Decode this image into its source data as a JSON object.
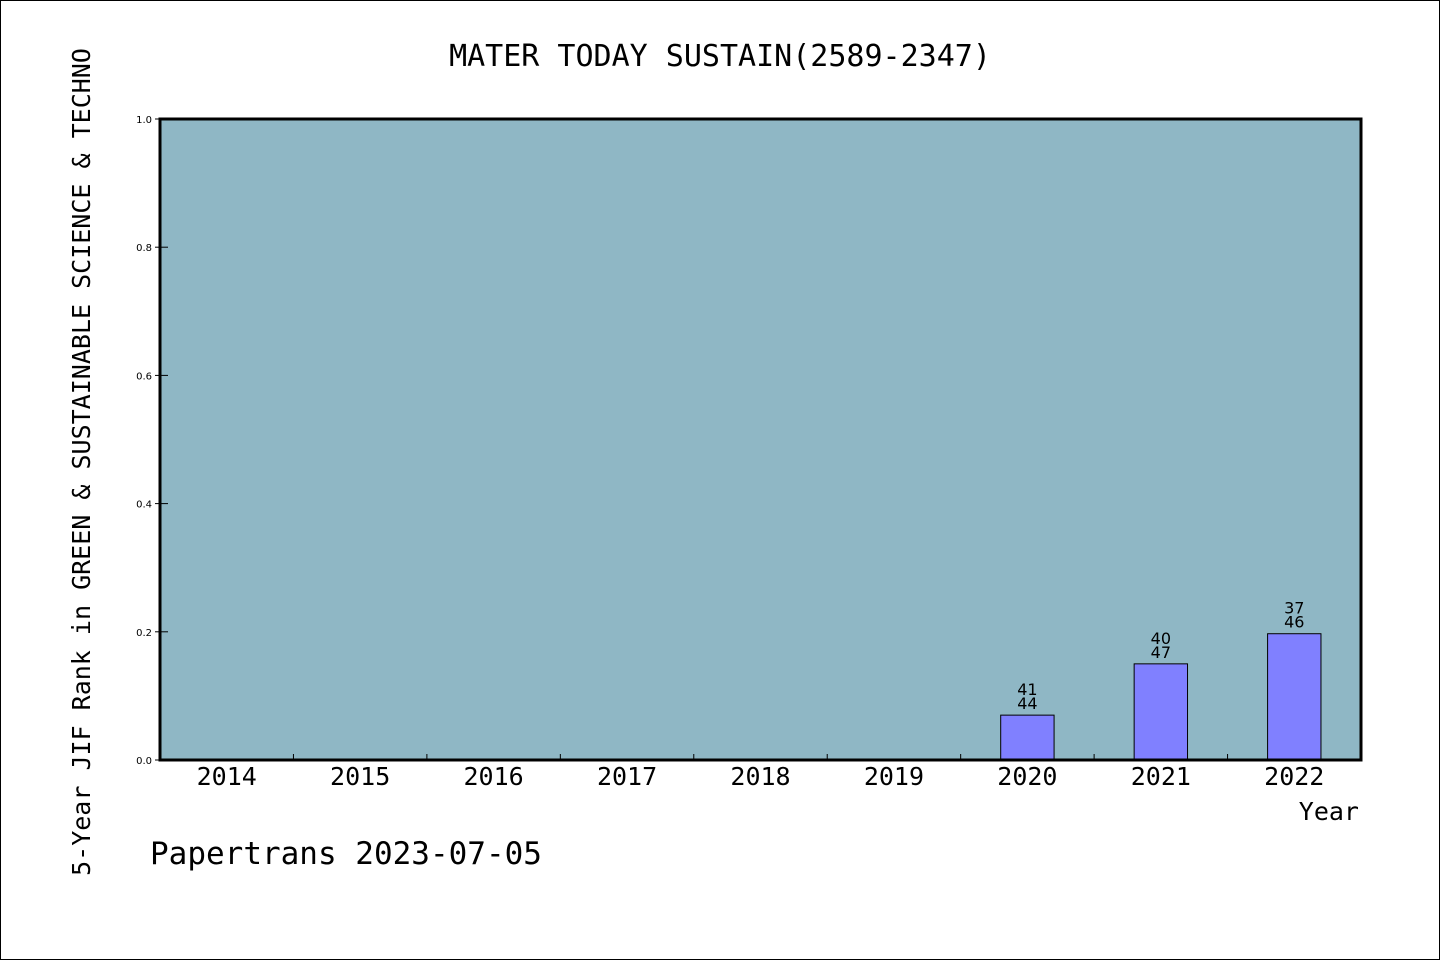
{
  "chart_data": {
    "type": "bar",
    "title": "MATER TODAY SUSTAIN(2589-2347)",
    "xlabel": "Year",
    "ylabel": "5-Year JIF Rank in GREEN & SUSTAINABLE SCIENCE & TECHNO",
    "categories": [
      "2014",
      "2015",
      "2016",
      "2017",
      "2018",
      "2019",
      "2020",
      "2021",
      "2022"
    ],
    "values": [
      null,
      null,
      null,
      null,
      null,
      null,
      0.07,
      0.15,
      0.197
    ],
    "bar_labels": [
      null,
      null,
      null,
      null,
      null,
      null,
      {
        "top": "41",
        "bottom": "44"
      },
      {
        "top": "40",
        "bottom": "47"
      },
      {
        "top": "37",
        "bottom": "46"
      }
    ],
    "ylim": [
      0,
      1.0
    ],
    "yticks": [
      "0.0",
      "0.2",
      "0.4",
      "0.6",
      "0.8",
      "1.0"
    ],
    "grid": false,
    "legend": "none",
    "colors": {
      "plot_background": "#8fb7c5",
      "bar_fill": "#8080ff",
      "bar_stroke": "#000000",
      "axis": "#000000"
    }
  },
  "footer": {
    "watermark": "Papertrans 2023-07-05"
  }
}
